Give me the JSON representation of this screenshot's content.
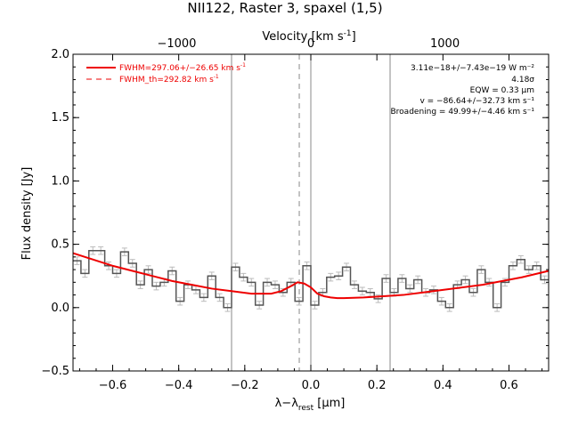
{
  "chart_data": {
    "type": "line",
    "title": "NII122, Raster 3, spaxel (1,5)",
    "xlabel": "λ−λ",
    "xlabel_sub": "rest",
    "xlabel_unit": " [μm]",
    "ylabel": "Flux density [Jy]",
    "top_axis_label": "Velocity [km s",
    "top_axis_label_sup": "-1",
    "top_axis_label_end": "]",
    "xlim": [
      -0.72,
      0.72
    ],
    "ylim": [
      -0.5,
      2.0
    ],
    "x_ticks": [
      -0.6,
      -0.4,
      -0.2,
      0.0,
      0.2,
      0.4,
      0.6
    ],
    "x_tick_labels": [
      "−0.6",
      "−0.4",
      "−0.2",
      "0.0",
      "0.2",
      "0.4",
      "0.6"
    ],
    "y_ticks": [
      -0.5,
      0.0,
      0.5,
      1.0,
      1.5,
      2.0
    ],
    "y_tick_labels": [
      "−0.5",
      "0.0",
      "0.5",
      "1.0",
      "1.5",
      "2.0"
    ],
    "top_ticks": [
      -1000,
      0,
      1000
    ],
    "top_tick_labels": [
      "−1000",
      "0",
      "1000"
    ],
    "top_axis_um_per_kms": 0.000406,
    "vertical_lines": [
      -0.24,
      0.0,
      0.24
    ],
    "dashed_line": -0.035,
    "legend": [
      {
        "label": "FWHM=297.06+/−26.65 km s",
        "sup": "-1",
        "style": "solid"
      },
      {
        "label": "FWHM_th=292.82 km s",
        "sup": "-1",
        "style": "dashed"
      }
    ],
    "annotations": [
      "3.11e−18+/−7.43e−19 W m⁻²",
      "4.18σ",
      "EQW = 0.33 μm",
      "v = −86.64+/−32.73 km s⁻¹",
      "Broadening = 49.99+/−4.46 km s⁻¹"
    ],
    "colors": {
      "fit": "#ee0000",
      "data": "#555555",
      "error": "#bbbbbb",
      "vlines": "#888888"
    },
    "series": [
      {
        "bin_width": 0.024,
        "x": [
          -0.72,
          -0.696,
          -0.672,
          -0.648,
          -0.624,
          -0.6,
          -0.576,
          -0.552,
          -0.528,
          -0.504,
          -0.48,
          -0.456,
          -0.432,
          -0.408,
          -0.384,
          -0.36,
          -0.336,
          -0.312,
          -0.288,
          -0.264,
          -0.24,
          -0.216,
          -0.192,
          -0.168,
          -0.144,
          -0.12,
          -0.096,
          -0.072,
          -0.048,
          -0.024,
          0.0,
          0.024,
          0.048,
          0.072,
          0.096,
          0.12,
          0.144,
          0.168,
          0.192,
          0.216,
          0.24,
          0.264,
          0.288,
          0.312,
          0.336,
          0.36,
          0.384,
          0.408,
          0.432,
          0.456,
          0.48,
          0.504,
          0.528,
          0.552,
          0.576,
          0.6,
          0.624,
          0.648,
          0.672,
          0.696
        ],
        "y": [
          0.37,
          0.27,
          0.45,
          0.45,
          0.33,
          0.27,
          0.44,
          0.35,
          0.18,
          0.3,
          0.17,
          0.2,
          0.29,
          0.05,
          0.18,
          0.14,
          0.08,
          0.25,
          0.08,
          0.0,
          0.32,
          0.24,
          0.2,
          0.02,
          0.2,
          0.18,
          0.12,
          0.2,
          0.05,
          0.33,
          0.02,
          0.12,
          0.24,
          0.25,
          0.32,
          0.18,
          0.13,
          0.12,
          0.07,
          0.23,
          0.12,
          0.23,
          0.15,
          0.22,
          0.12,
          0.14,
          0.05,
          0.0,
          0.18,
          0.22,
          0.12,
          0.3,
          0.2,
          0.0,
          0.2,
          0.33,
          0.38,
          0.3,
          0.33,
          0.22
        ],
        "err": 0.03
      }
    ],
    "fit": {
      "name": "FWHM=297.06+/−26.65 km s-1",
      "x": [
        -0.72,
        -0.66,
        -0.6,
        -0.54,
        -0.48,
        -0.42,
        -0.36,
        -0.3,
        -0.24,
        -0.18,
        -0.12,
        -0.09,
        -0.06,
        -0.04,
        -0.02,
        0.0,
        0.02,
        0.04,
        0.06,
        0.08,
        0.1,
        0.16,
        0.22,
        0.28,
        0.34,
        0.4,
        0.46,
        0.52,
        0.58,
        0.64,
        0.72
      ],
      "y": [
        0.43,
        0.38,
        0.33,
        0.29,
        0.25,
        0.21,
        0.18,
        0.15,
        0.13,
        0.11,
        0.11,
        0.13,
        0.17,
        0.2,
        0.19,
        0.16,
        0.11,
        0.09,
        0.08,
        0.075,
        0.075,
        0.08,
        0.09,
        0.1,
        0.12,
        0.14,
        0.16,
        0.18,
        0.21,
        0.24,
        0.29
      ]
    }
  }
}
